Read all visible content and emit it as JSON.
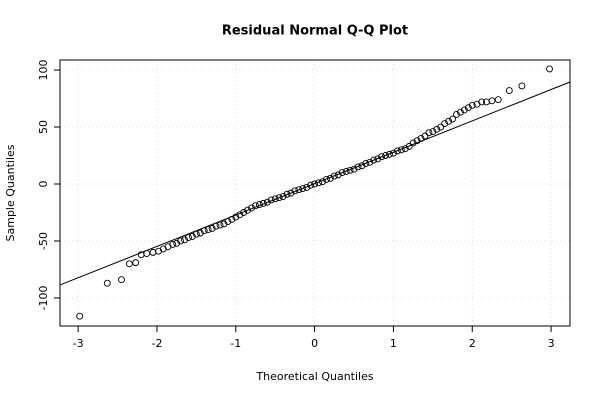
{
  "chart_data": {
    "type": "scatter",
    "title": "Residual Normal Q-Q Plot",
    "x_label": "Theoretical Quantiles",
    "y_label": "Sample Quantiles",
    "xlim": [
      -3.23,
      3.24
    ],
    "ylim": [
      -124.6,
      108.8
    ],
    "xticks": [
      -3,
      -2,
      -1,
      0,
      1,
      2,
      3
    ],
    "yticks": [
      -100,
      -50,
      0,
      50,
      100
    ],
    "grid": true,
    "color": "#000000",
    "x": [
      -2.98,
      -2.63,
      -2.45,
      -2.35,
      -2.27,
      -2.2,
      -2.13,
      -2.05,
      -1.98,
      -1.92,
      -1.86,
      -1.8,
      -1.75,
      -1.7,
      -1.65,
      -1.6,
      -1.55,
      -1.5,
      -1.45,
      -1.4,
      -1.35,
      -1.3,
      -1.25,
      -1.2,
      -1.15,
      -1.1,
      -1.05,
      -1.0,
      -0.95,
      -0.9,
      -0.85,
      -0.8,
      -0.75,
      -0.7,
      -0.65,
      -0.6,
      -0.55,
      -0.5,
      -0.45,
      -0.4,
      -0.35,
      -0.3,
      -0.25,
      -0.2,
      -0.15,
      -0.1,
      -0.05,
      0,
      0.05,
      0.1,
      0.15,
      0.2,
      0.25,
      0.3,
      0.35,
      0.4,
      0.45,
      0.5,
      0.55,
      0.6,
      0.65,
      0.7,
      0.75,
      0.8,
      0.85,
      0.9,
      0.95,
      1.0,
      1.05,
      1.1,
      1.15,
      1.2,
      1.25,
      1.3,
      1.35,
      1.4,
      1.45,
      1.5,
      1.55,
      1.6,
      1.65,
      1.7,
      1.75,
      1.8,
      1.85,
      1.9,
      1.95,
      2.0,
      2.06,
      2.12,
      2.18,
      2.25,
      2.33,
      2.47,
      2.63,
      2.98
    ],
    "values": [
      -116,
      -87,
      -84,
      -70,
      -69,
      -62,
      -61,
      -60,
      -59,
      -57,
      -55,
      -53,
      -52,
      -50,
      -49,
      -47,
      -46,
      -44,
      -43,
      -41,
      -40,
      -39,
      -37,
      -36,
      -35,
      -33,
      -31,
      -29,
      -27,
      -25,
      -23,
      -21,
      -19,
      -18,
      -17,
      -16,
      -14,
      -13,
      -12,
      -11,
      -9,
      -8,
      -6,
      -5,
      -4,
      -3,
      -1,
      0,
      1,
      2,
      4,
      5,
      7,
      8,
      10,
      11,
      12,
      13,
      15,
      16,
      18,
      19,
      21,
      22,
      24,
      25,
      26,
      27,
      29,
      30,
      31,
      33,
      36,
      38,
      40,
      42,
      45,
      46,
      48,
      50,
      53,
      55,
      57,
      61,
      63,
      65,
      67,
      69,
      70,
      72,
      72,
      73,
      74,
      82,
      86,
      101
    ],
    "reference_line": {
      "x": [
        -3.23,
        3.24
      ],
      "y": [
        -88.6,
        89.5
      ]
    }
  }
}
